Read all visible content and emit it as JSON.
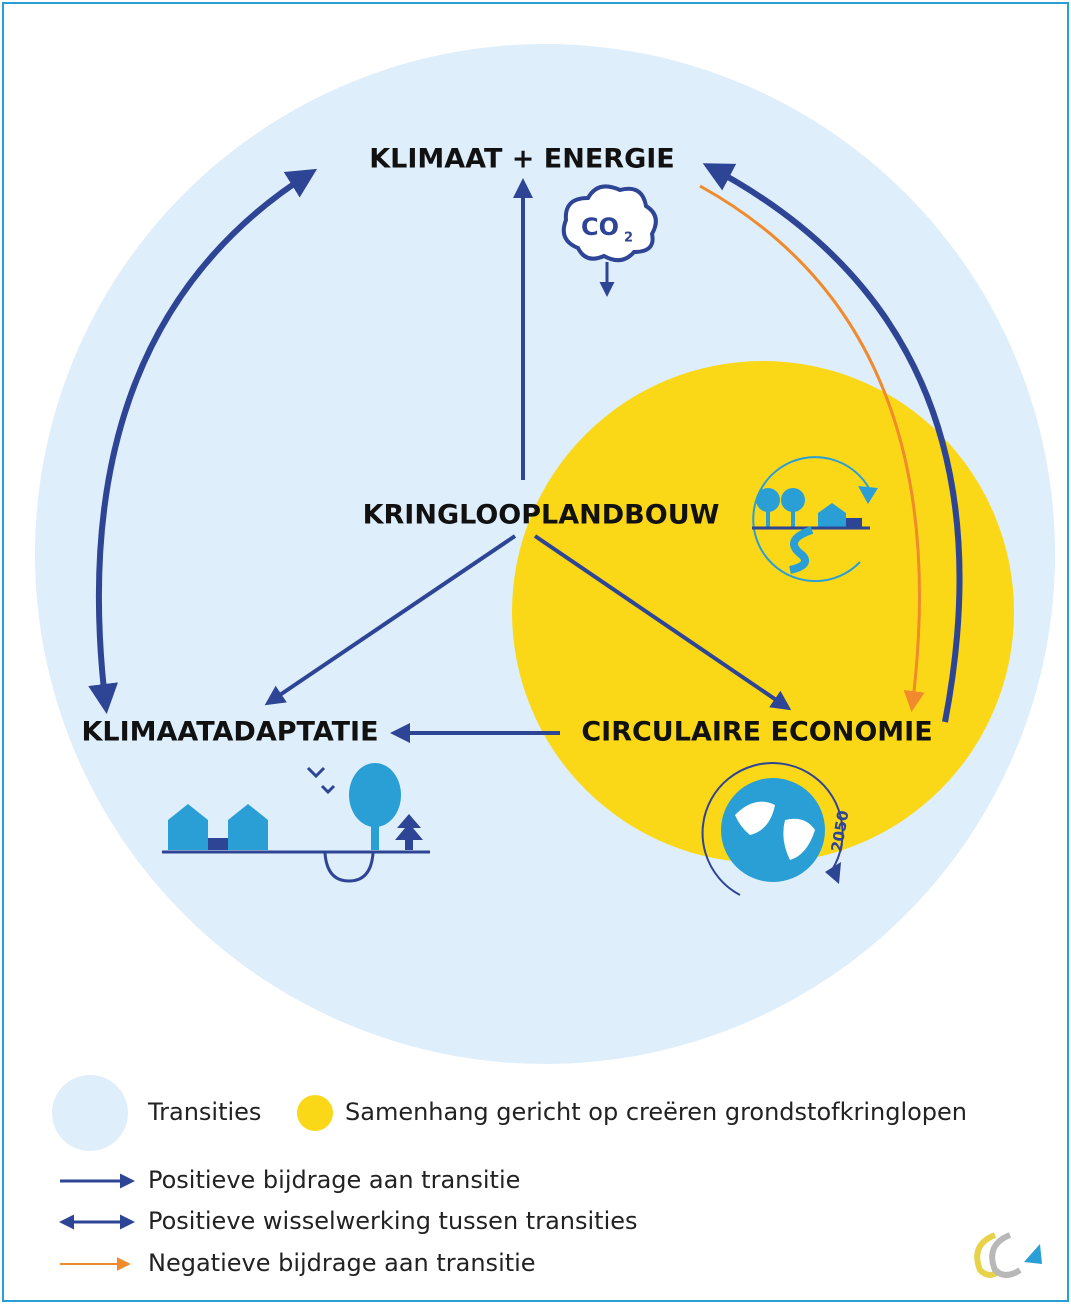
{
  "nodes": [
    {
      "label": "KLIMAAT + ENERGIE"
    },
    {
      "label": "KRINGLOOPLANDBOUW"
    },
    {
      "label": "KLIMAATADAPTATIE"
    },
    {
      "label": "CIRCULAIRE ECONOMIE"
    }
  ],
  "icons": {
    "co2": {
      "text": "CO",
      "subscript": "2"
    },
    "globe": {
      "year": "2050"
    }
  },
  "legend": {
    "areas": [
      {
        "label": "Transities"
      },
      {
        "label": "Samenhang gericht op creëren grondstofkringlopen"
      }
    ],
    "arrows": [
      {
        "label": "Positieve bijdrage aan transitie"
      },
      {
        "label": "Positieve wisselwerking tussen transities"
      },
      {
        "label": "Negatieve bijdrage aan transitie"
      }
    ]
  }
}
